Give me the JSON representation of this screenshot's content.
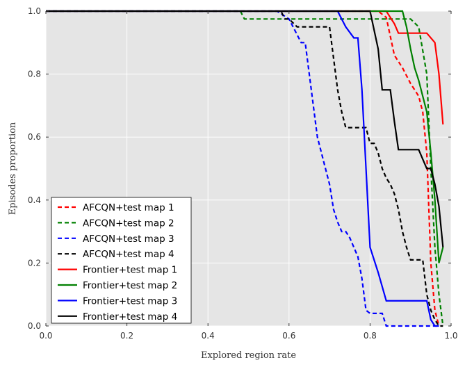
{
  "chart_data": {
    "type": "line",
    "title": "",
    "xlabel": "Explored region rate",
    "ylabel": "Episodes proportion",
    "xlim": [
      0.0,
      1.0
    ],
    "ylim": [
      0.0,
      1.0
    ],
    "xticks": [
      0.0,
      0.2,
      0.4,
      0.6,
      0.8,
      1.0
    ],
    "xtick_labels": [
      "0.0",
      "0.2",
      "0.4",
      "0.6",
      "0.8",
      "1.0"
    ],
    "yticks": [
      0.0,
      0.2,
      0.4,
      0.6,
      0.8,
      1.0
    ],
    "ytick_labels": [
      "0.0",
      "0.2",
      "0.4",
      "0.6",
      "0.8",
      "1.0"
    ],
    "grid": true,
    "legend_position": "bottom-left",
    "series": [
      {
        "name": "AFCQN+test map 1",
        "color": "#ff0000",
        "style": "dashed",
        "x": [
          0.0,
          0.82,
          0.84,
          0.85,
          0.86,
          0.88,
          0.9,
          0.92,
          0.93,
          0.94,
          0.95,
          0.96,
          0.97
        ],
        "y": [
          1.0,
          1.0,
          0.98,
          0.92,
          0.86,
          0.82,
          0.77,
          0.73,
          0.68,
          0.55,
          0.2,
          0.05,
          0.0
        ]
      },
      {
        "name": "AFCQN+test map 2",
        "color": "#008000",
        "style": "dashed",
        "x": [
          0.0,
          0.48,
          0.49,
          0.9,
          0.92,
          0.94,
          0.95,
          0.96,
          0.97,
          0.98
        ],
        "y": [
          1.0,
          1.0,
          0.975,
          0.975,
          0.95,
          0.8,
          0.5,
          0.25,
          0.1,
          0.0
        ]
      },
      {
        "name": "AFCQN+test map 3",
        "color": "#0000ff",
        "style": "dashed",
        "x": [
          0.0,
          0.57,
          0.6,
          0.61,
          0.63,
          0.64,
          0.65,
          0.66,
          0.67,
          0.68,
          0.7,
          0.71,
          0.72,
          0.73,
          0.74,
          0.75,
          0.76,
          0.77,
          0.78,
          0.79,
          0.8,
          0.81,
          0.82,
          0.83,
          0.84,
          0.85,
          0.97
        ],
        "y": [
          1.0,
          1.0,
          0.975,
          0.95,
          0.9,
          0.9,
          0.8,
          0.7,
          0.6,
          0.55,
          0.45,
          0.37,
          0.33,
          0.3,
          0.3,
          0.28,
          0.25,
          0.22,
          0.15,
          0.05,
          0.04,
          0.04,
          0.04,
          0.04,
          0.0,
          0.0,
          0.0
        ]
      },
      {
        "name": "AFCQN+test map 4",
        "color": "#000000",
        "style": "dashed",
        "x": [
          0.0,
          0.58,
          0.59,
          0.6,
          0.62,
          0.63,
          0.7,
          0.71,
          0.72,
          0.73,
          0.74,
          0.75,
          0.79,
          0.8,
          0.81,
          0.82,
          0.83,
          0.84,
          0.85,
          0.86,
          0.87,
          0.88,
          0.89,
          0.9,
          0.91,
          0.93,
          0.94,
          0.95,
          0.96,
          0.97,
          0.98
        ],
        "y": [
          1.0,
          1.0,
          0.975,
          0.975,
          0.95,
          0.95,
          0.95,
          0.85,
          0.75,
          0.68,
          0.63,
          0.63,
          0.63,
          0.58,
          0.58,
          0.55,
          0.5,
          0.47,
          0.45,
          0.42,
          0.37,
          0.3,
          0.25,
          0.21,
          0.21,
          0.21,
          0.1,
          0.05,
          0.02,
          0.0,
          0.0
        ]
      },
      {
        "name": "Frontier+test map 1",
        "color": "#ff0000",
        "style": "solid",
        "x": [
          0.0,
          0.84,
          0.86,
          0.87,
          0.94,
          0.96,
          0.97,
          0.98
        ],
        "y": [
          1.0,
          1.0,
          0.96,
          0.93,
          0.93,
          0.9,
          0.8,
          0.64
        ]
      },
      {
        "name": "Frontier+test map 2",
        "color": "#008000",
        "style": "solid",
        "x": [
          0.0,
          0.88,
          0.89,
          0.9,
          0.91,
          0.92,
          0.94,
          0.95,
          0.96,
          0.97,
          0.98
        ],
        "y": [
          1.0,
          1.0,
          0.95,
          0.88,
          0.82,
          0.78,
          0.68,
          0.55,
          0.4,
          0.2,
          0.25
        ]
      },
      {
        "name": "Frontier+test map 3",
        "color": "#0000ff",
        "style": "solid",
        "x": [
          0.0,
          0.72,
          0.73,
          0.74,
          0.76,
          0.77,
          0.78,
          0.79,
          0.8,
          0.82,
          0.84,
          0.92,
          0.94,
          0.95,
          0.96,
          0.97
        ],
        "y": [
          1.0,
          1.0,
          0.975,
          0.95,
          0.915,
          0.915,
          0.75,
          0.5,
          0.25,
          0.17,
          0.08,
          0.08,
          0.08,
          0.02,
          0.0,
          0.0
        ]
      },
      {
        "name": "Frontier+test map 4",
        "color": "#000000",
        "style": "solid",
        "x": [
          0.0,
          0.8,
          0.82,
          0.83,
          0.85,
          0.86,
          0.87,
          0.88,
          0.92,
          0.93,
          0.94,
          0.95,
          0.96,
          0.97,
          0.98
        ],
        "y": [
          1.0,
          1.0,
          0.88,
          0.75,
          0.75,
          0.65,
          0.56,
          0.56,
          0.56,
          0.53,
          0.5,
          0.5,
          0.45,
          0.38,
          0.25
        ]
      }
    ]
  }
}
